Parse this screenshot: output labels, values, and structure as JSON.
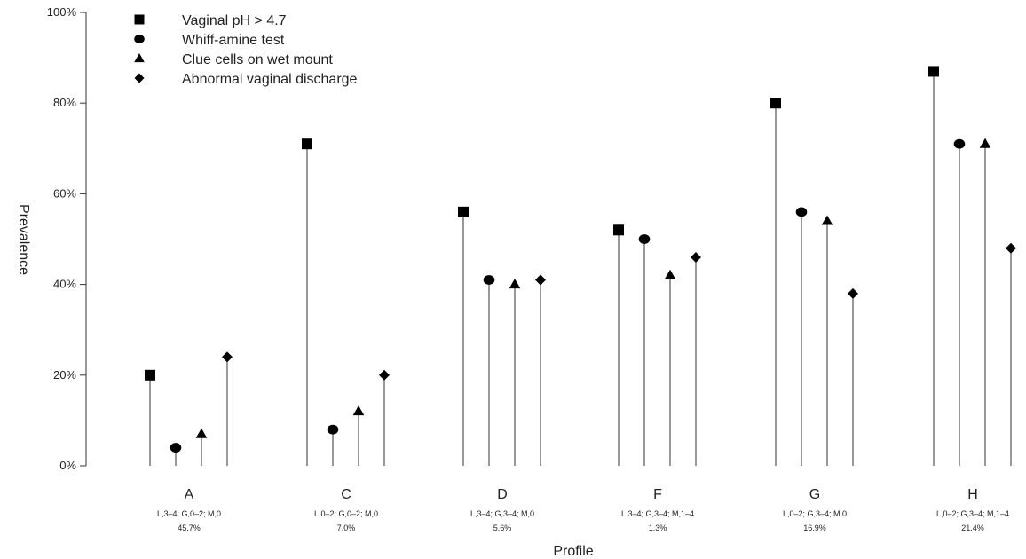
{
  "chart_data": {
    "type": "scatter",
    "ylabel": "Prevalence",
    "xlabel": "Profile",
    "ylim": [
      0,
      100
    ],
    "yticks": [
      "0%",
      "20%",
      "40%",
      "60%",
      "80%",
      "100%"
    ],
    "categories": [
      "A",
      "C",
      "D",
      "F",
      "G",
      "H"
    ],
    "category_details": [
      {
        "profile": "L,3–4; G,0–2; M,0",
        "share": "45.7%"
      },
      {
        "profile": "L,0–2; G,0–2; M,0",
        "share": "7.0%"
      },
      {
        "profile": "L,3–4; G,3–4; M,0",
        "share": "5.6%"
      },
      {
        "profile": "L,3–4; G,3–4; M,1–4",
        "share": "1.3%"
      },
      {
        "profile": "L,0–2; G,3–4; M,0",
        "share": "16.9%"
      },
      {
        "profile": "L,0–2; G,3–4; M,1–4",
        "share": "21.4%"
      }
    ],
    "series": [
      {
        "name": "Vaginal pH > 4.7",
        "marker": "square",
        "values": [
          20,
          71,
          56,
          52,
          80,
          87
        ]
      },
      {
        "name": "Whiff-amine test",
        "marker": "circle",
        "values": [
          4,
          8,
          41,
          50,
          56,
          71
        ]
      },
      {
        "name": "Clue cells on wet mount",
        "marker": "triangle",
        "values": [
          7,
          12,
          40,
          42,
          54,
          71
        ]
      },
      {
        "name": "Abnormal vaginal discharge",
        "marker": "diamond",
        "values": [
          24,
          20,
          41,
          46,
          38,
          48
        ]
      }
    ],
    "legend_position": "top-left",
    "grid": false,
    "colors": {
      "marks": "#000000",
      "lines": "#555555"
    }
  }
}
